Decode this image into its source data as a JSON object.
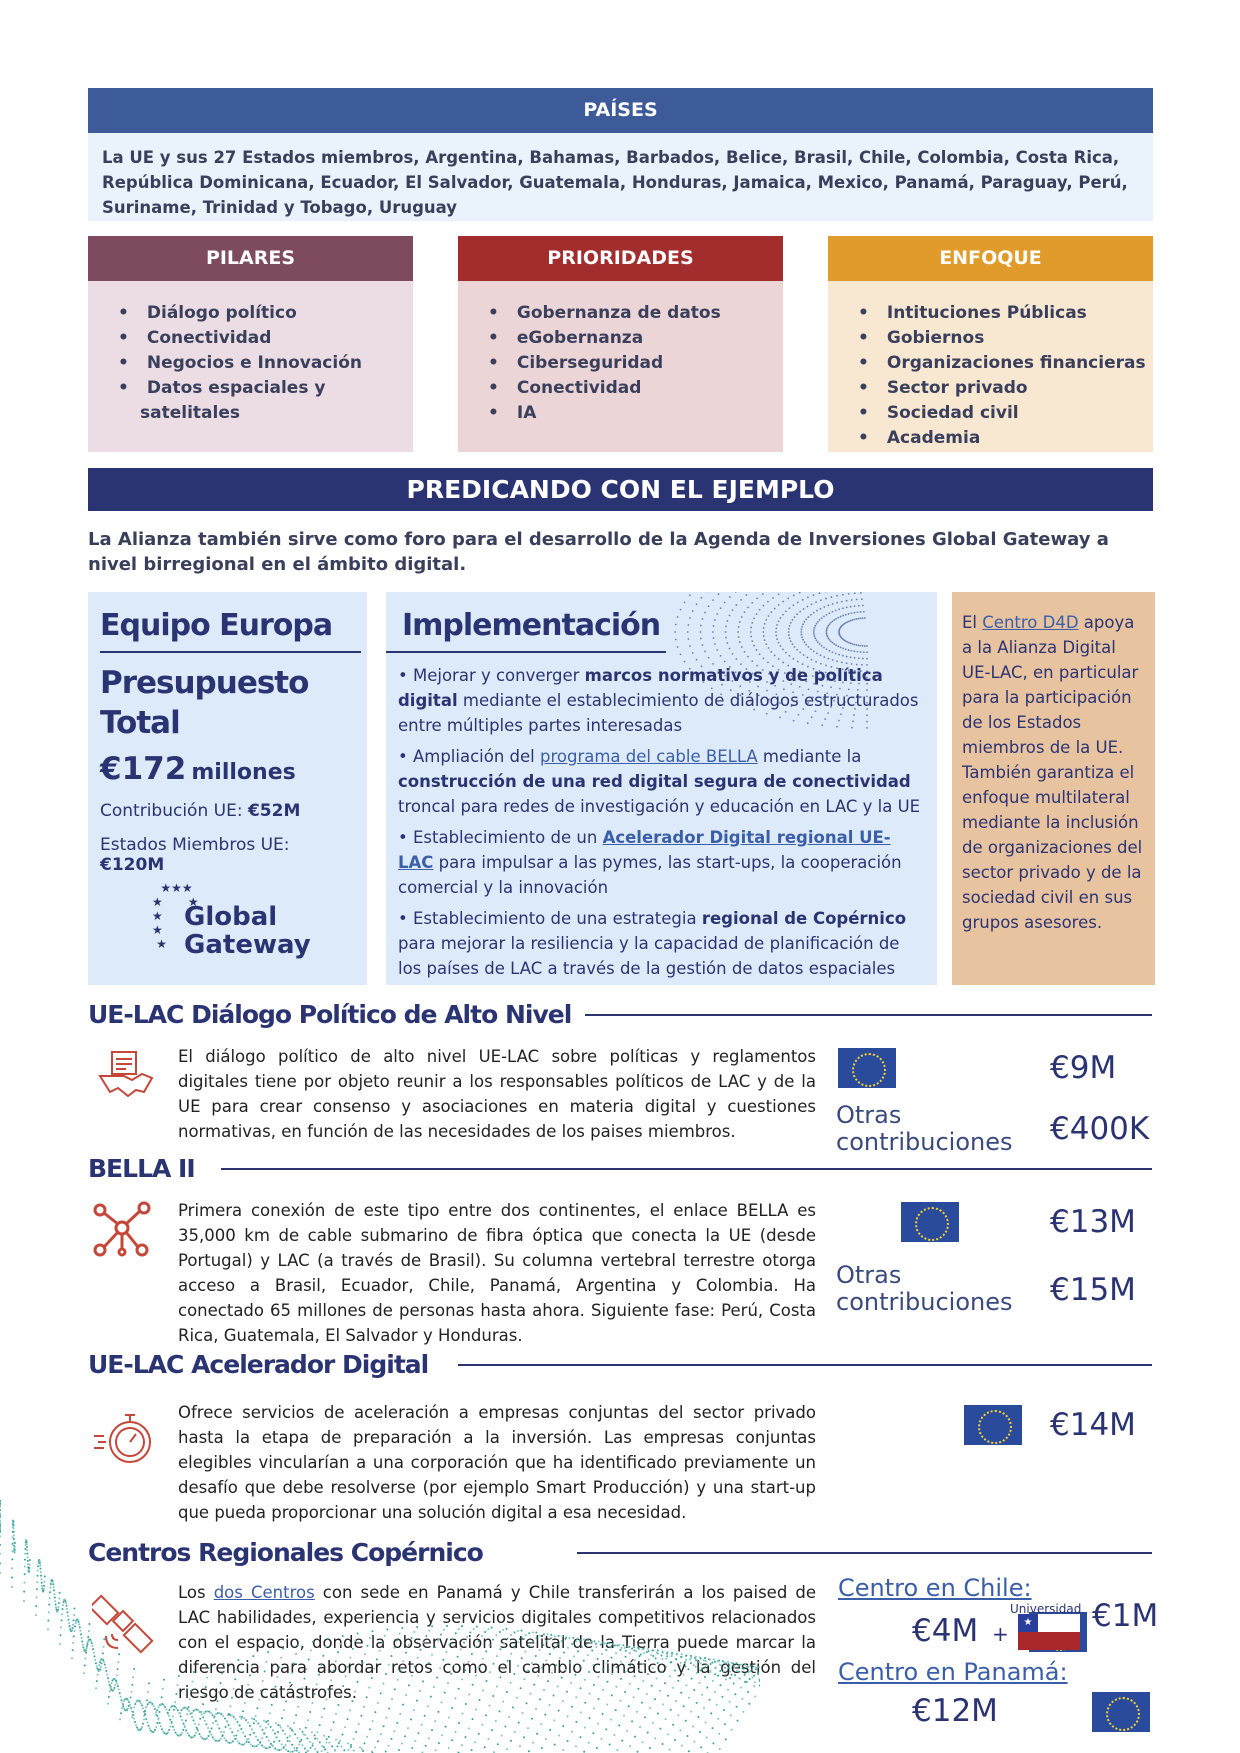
{
  "paises": {
    "title": "PAÍSES",
    "text": "La UE y sus 27 Estados miembros, Argentina, Bahamas, Barbados, Belice, Brasil, Chile, Colombia, Costa Rica, República Dominicana, Ecuador, El Salvador, Guatemala, Honduras, Jamaica, Mexico, Panamá, Paraguay, Perú, Suriname, Trinidad y Tobago, Uruguay"
  },
  "pilares": {
    "title": "PILARES",
    "items": [
      "Diálogo político",
      "Conectividad",
      "Negocios e Innovación",
      "Datos espaciales y satelitales"
    ]
  },
  "prioridades": {
    "title": "PRIORIDADES",
    "items": [
      "Gobernanza de datos",
      "eGobernanza",
      "Ciberseguridad",
      "Conectividad",
      "IA"
    ]
  },
  "enfoque": {
    "title": "ENFOQUE",
    "items": [
      "Intituciones Públicas",
      "Gobiernos",
      "Organizaciones financieras",
      "Sector privado",
      "Sociedad civil",
      "Academia"
    ]
  },
  "predicando": {
    "title": "PREDICANDO CON EL EJEMPLO",
    "intro": "La Alianza también sirve como foro para el desarrollo de la Agenda de Inversiones Global Gateway a nivel birregional en el ámbito digital."
  },
  "equipo": {
    "title": "Equipo Europa",
    "budget_title": "Presupuesto Total",
    "amount": "€172",
    "unit": "millones",
    "contrib_label": "Contribución UE: ",
    "contrib_value": "€52M",
    "estados_label": "Estados Miembros UE: ",
    "estados_value": "€120M",
    "logo_line1": "Global",
    "logo_line2": "Gateway"
  },
  "implementacion": {
    "title": "Implementación",
    "b1": [
      "• Mejorar y converger ",
      "marcos normativos y de política digital",
      " mediante el establecimiento de diálogos estructurados entre múltiples partes interesadas"
    ],
    "b2": [
      "• Ampliación del ",
      "programa del cable BELLA",
      " mediante la ",
      "construcción de una red digital segura de conectividad",
      " troncal para redes de investigación y educación en LAC y la UE"
    ],
    "b3": [
      "• Establecimiento de un ",
      "Acelerador Digital regional UE-LAC",
      " para impulsar a las pymes, las start-ups, la cooperación comercial y la innovación"
    ],
    "b4": [
      "• Establecimiento de una estrategia ",
      "regional de Copérnico",
      " para mejorar la resiliencia y la capacidad de planificación de los países de LAC a través de la gestión de datos espaciales"
    ]
  },
  "d4d": {
    "pre": "El ",
    "link": "Centro D4D",
    "post": " apoya a la Alianza Digital UE-LAC, en particular para la participación de los Estados miembros de la UE. También garantiza el enfoque multilateral mediante la inclusión de organizaciones del sector privado y de la sociedad civil en sus grupos asesores."
  },
  "sections": [
    {
      "title": "UE-LAC Diálogo Político de Alto Nivel",
      "icon": "handshake-icon",
      "text": "El diálogo político de alto nivel UE-LAC sobre políticas y reglamentos digitales tiene por objeto reunir a los responsables políticos de LAC y de la UE para crear consenso y asociaciones en materia digital y cuestiones normativas, en función de las necesidades de los paises miembros.",
      "eu": "€9M",
      "otras_label": "Otras contribuciones",
      "otras": "€400K"
    },
    {
      "title": "BELLA II",
      "icon": "network-icon",
      "text": "Primera conexión de este tipo entre dos continentes, el enlace BELLA es 35,000 km de cable submarino de fibra óptica que conecta la UE (desde Portugal) y LAC (a través de Brasil). Su columna vertebral terrestre otorga acceso a Brasil, Ecuador, Chile, Panamá, Argentina y Colombia. Ha conectado 65 millones de personas hasta ahora. Siguiente fase: Perú, Costa Rica, Guatemala, El Salvador y Honduras.",
      "eu": "€13M",
      "otras_label": "Otras contribuciones",
      "otras": "€15M"
    },
    {
      "title": "UE-LAC Acelerador Digital",
      "icon": "stopwatch-icon",
      "text": "Ofrece servicios de aceleración a empresas conjuntas del sector privado hasta la etapa de preparación a la inversión. Las empresas conjuntas elegibles vincularían a una corporación que ha identificado previamente un desafío que debe resolverse (por ejemplo Smart Producción) y una start-up que pueda proporcionar una solución digital a esa necesidad.",
      "eu": "€14M"
    },
    {
      "title": "Centros Regionales Copérnico",
      "icon": "satellite-icon",
      "text_pre": "Los ",
      "text_link": "dos Centros",
      "text_post": " con sede en Panamá y Chile transferirán a los paised de LAC habilidades, experiencia y servicios digitales competitivos relacionados con el espacio, donde la observación satelital de la Tierra puede marcar la diferencia para abordar retos como el cambio climático y la gestión del riesgo de catástrofes.",
      "chile_label": "Centro en Chile:",
      "chile_eu": "€4M",
      "plus": "+",
      "uni_label": "Universidad",
      "chile_uni": "€1M",
      "panama_label": "Centro en Panamá:",
      "panama_eu": "€12M"
    }
  ],
  "colors": {
    "navy": "#2b3473",
    "paises": "#3d5a99",
    "pilares": "#7d4a5e",
    "prioridades": "#a22d2c",
    "enfoque": "#e19b2a",
    "accent_red": "#c4473a"
  }
}
